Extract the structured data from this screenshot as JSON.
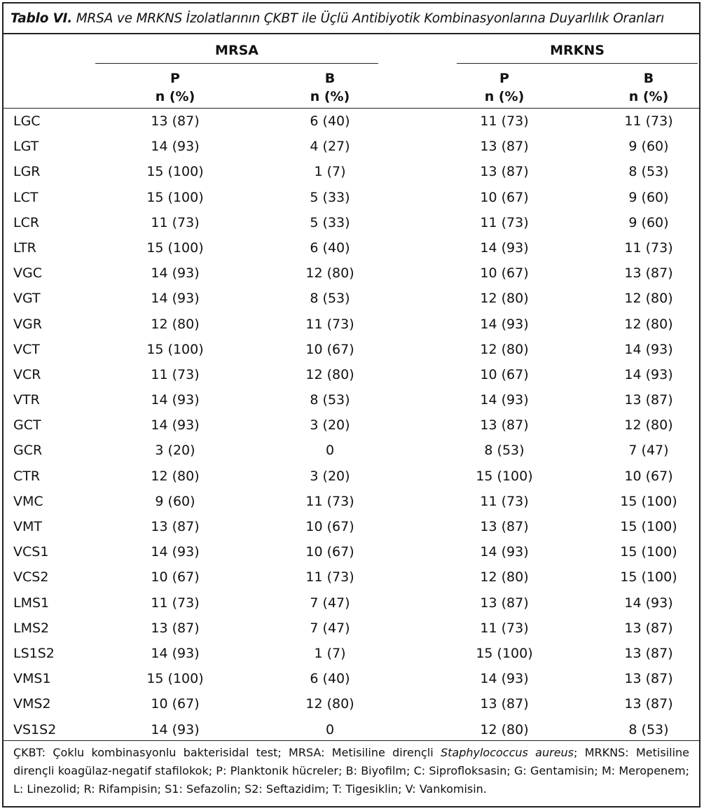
{
  "caption": {
    "label": "Tablo VI.",
    "text": "MRSA ve MRKNS İzolatlarının ÇKBT ile Üçlü Antibiyotik Kombinasyonlarına Duyarlılık Oranları"
  },
  "groups": [
    "MRSA",
    "MRKNS"
  ],
  "subheaders": [
    {
      "line1": "P",
      "line2": "n (%)"
    },
    {
      "line1": "B",
      "line2": "n (%)"
    },
    {
      "line1": "P",
      "line2": "n (%)"
    },
    {
      "line1": "B",
      "line2": "n (%)"
    }
  ],
  "rows": [
    {
      "label": "LGC",
      "values": [
        "13 (87)",
        "6 (40)",
        "11 (73)",
        "11 (73)"
      ]
    },
    {
      "label": "LGT",
      "values": [
        "14 (93)",
        "4 (27)",
        "13 (87)",
        "9 (60)"
      ]
    },
    {
      "label": "LGR",
      "values": [
        "15 (100)",
        "1 (7)",
        "13 (87)",
        "8 (53)"
      ]
    },
    {
      "label": "LCT",
      "values": [
        "15 (100)",
        "5 (33)",
        "10 (67)",
        "9 (60)"
      ]
    },
    {
      "label": "LCR",
      "values": [
        "11 (73)",
        "5 (33)",
        "11 (73)",
        "9 (60)"
      ]
    },
    {
      "label": "LTR",
      "values": [
        "15 (100)",
        "6 (40)",
        "14 (93)",
        "11 (73)"
      ]
    },
    {
      "label": "VGC",
      "values": [
        "14 (93)",
        "12 (80)",
        "10 (67)",
        "13 (87)"
      ]
    },
    {
      "label": "VGT",
      "values": [
        "14 (93)",
        "8 (53)",
        "12 (80)",
        "12 (80)"
      ]
    },
    {
      "label": "VGR",
      "values": [
        "12 (80)",
        "11 (73)",
        "14 (93)",
        "12 (80)"
      ]
    },
    {
      "label": "VCT",
      "values": [
        "15 (100)",
        "10 (67)",
        "12 (80)",
        "14 (93)"
      ]
    },
    {
      "label": "VCR",
      "values": [
        "11 (73)",
        "12 (80)",
        "10 (67)",
        "14 (93)"
      ]
    },
    {
      "label": "VTR",
      "values": [
        "14 (93)",
        "8 (53)",
        "14 (93)",
        "13 (87)"
      ]
    },
    {
      "label": "GCT",
      "values": [
        "14 (93)",
        "3 (20)",
        "13 (87)",
        "12 (80)"
      ]
    },
    {
      "label": "GCR",
      "values": [
        "3 (20)",
        "0",
        "8 (53)",
        "7 (47)"
      ]
    },
    {
      "label": "CTR",
      "values": [
        "12 (80)",
        "3 (20)",
        "15 (100)",
        "10 (67)"
      ]
    },
    {
      "label": "VMC",
      "values": [
        "9 (60)",
        "11 (73)",
        "11 (73)",
        "15 (100)"
      ]
    },
    {
      "label": "VMT",
      "values": [
        "13 (87)",
        "10 (67)",
        "13 (87)",
        "15 (100)"
      ]
    },
    {
      "label": "VCS1",
      "values": [
        "14 (93)",
        "10 (67)",
        "14 (93)",
        "15 (100)"
      ]
    },
    {
      "label": "VCS2",
      "values": [
        "10 (67)",
        "11 (73)",
        "12 (80)",
        "15 (100)"
      ]
    },
    {
      "label": "LMS1",
      "values": [
        "11 (73)",
        "7 (47)",
        "13 (87)",
        "14 (93)"
      ]
    },
    {
      "label": "LMS2",
      "values": [
        "13 (87)",
        "7 (47)",
        "11 (73)",
        "13 (87)"
      ]
    },
    {
      "label": "LS1S2",
      "values": [
        "14 (93)",
        "1 (7)",
        "15 (100)",
        "13 (87)"
      ]
    },
    {
      "label": "VMS1",
      "values": [
        "15 (100)",
        "6 (40)",
        "14 (93)",
        "13 (87)"
      ]
    },
    {
      "label": "VMS2",
      "values": [
        "10 (67)",
        "12 (80)",
        "13 (87)",
        "13 (87)"
      ]
    },
    {
      "label": "VS1S2",
      "values": [
        "14 (93)",
        "0",
        "12 (80)",
        "8 (53)"
      ]
    }
  ],
  "footnote": {
    "before_italic": "ÇKBT: Çoklu kombinasyonlu bakterisidal test; MRSA: Metisiline dirençli ",
    "italic": "Staphylococcus aureus",
    "after_italic": "; MRKNS: Metisiline dirençli koagülaz-negatif stafilokok; P: Planktonik hücreler; B: Biyofilm; C: Siprofloksasin; G: Gentamisin; M: Meropenem; L: Linezolid; R: Rifampisin; S1: Sefazolin; S2: Seftazidim; T: Tigesiklin; V: Vankomisin."
  }
}
